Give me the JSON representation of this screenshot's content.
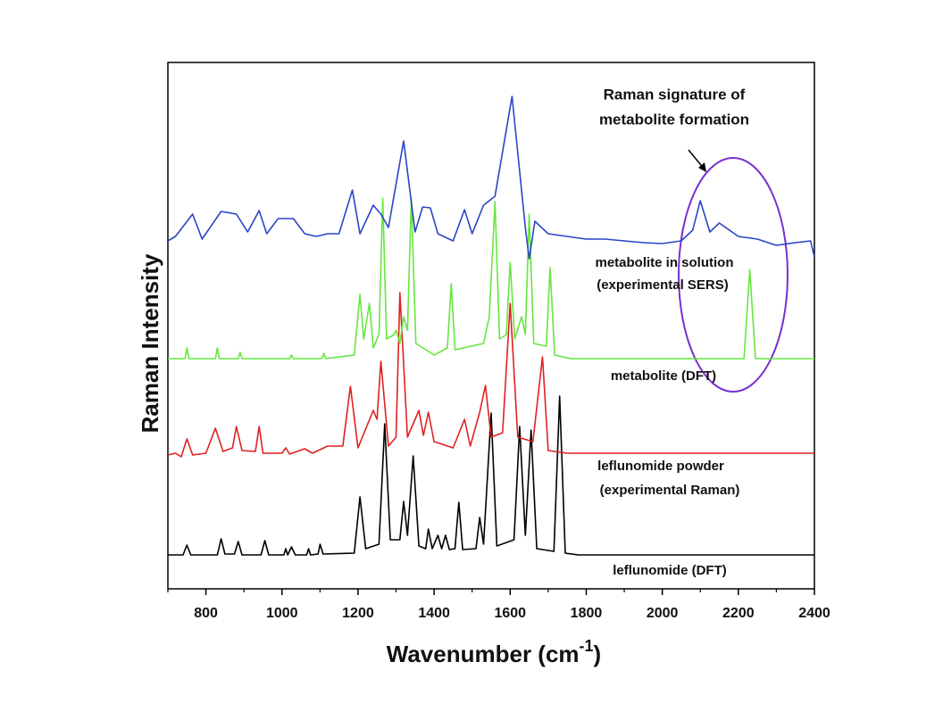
{
  "chart_data": {
    "type": "line",
    "xlabel": {
      "text": "Wavenumber (cm",
      "sup": "-1",
      "tail": ")"
    },
    "ylabel": "Raman Intensity",
    "xlim": [
      700,
      2400
    ],
    "xticks": [
      800,
      1000,
      1200,
      1400,
      1600,
      1800,
      2000,
      2200,
      2400
    ],
    "xticks_minor": [
      700,
      900,
      1100,
      1300,
      1500,
      1700,
      1900,
      2100,
      2300
    ],
    "ylim": [
      0,
      590
    ],
    "annotation": [
      "Raman signature of",
      "metabolite formation"
    ],
    "series": [
      {
        "label": [
          "leflunomide (DFT)"
        ],
        "color": "#000000",
        "x": [
          700,
          740,
          750,
          760,
          830,
          840,
          850,
          875,
          885,
          895,
          945,
          955,
          965,
          1005,
          1010,
          1015,
          1025,
          1035,
          1065,
          1070,
          1075,
          1095,
          1100,
          1108,
          1190,
          1205,
          1220,
          1255,
          1270,
          1285,
          1310,
          1320,
          1330,
          1345,
          1360,
          1378,
          1385,
          1395,
          1410,
          1420,
          1430,
          1440,
          1455,
          1465,
          1475,
          1510,
          1520,
          1530,
          1550,
          1565,
          1610,
          1625,
          1640,
          1655,
          1670,
          1715,
          1730,
          1745,
          1780,
          2400
        ],
        "values": [
          38,
          38,
          49,
          38,
          38,
          56,
          39,
          39,
          53,
          38,
          38,
          54,
          38,
          38,
          45,
          38,
          47,
          38,
          38,
          45,
          38,
          39,
          50,
          39,
          40,
          103,
          45,
          50,
          185,
          55,
          55,
          98,
          60,
          149,
          48,
          45,
          67,
          45,
          60,
          45,
          60,
          44,
          45,
          97,
          44,
          45,
          80,
          50,
          197,
          48,
          55,
          182,
          60,
          178,
          45,
          42,
          216,
          40,
          38,
          38
        ]
      },
      {
        "label": [
          "leflunomide powder",
          "(experimental Raman)"
        ],
        "color": "#e02020",
        "x": [
          700,
          720,
          735,
          750,
          765,
          800,
          825,
          845,
          870,
          880,
          895,
          930,
          940,
          950,
          1000,
          1010,
          1020,
          1060,
          1080,
          1120,
          1160,
          1180,
          1200,
          1240,
          1250,
          1260,
          1280,
          1300,
          1310,
          1330,
          1360,
          1372,
          1385,
          1400,
          1450,
          1480,
          1495,
          1520,
          1535,
          1550,
          1580,
          1600,
          1620,
          1660,
          1685,
          1700,
          1750,
          1800,
          2000,
          2200,
          2400
        ],
        "values": [
          150,
          152,
          148,
          168,
          150,
          152,
          180,
          154,
          158,
          182,
          155,
          154,
          182,
          152,
          152,
          158,
          151,
          157,
          152,
          160,
          160,
          227,
          158,
          200,
          190,
          255,
          160,
          170,
          332,
          170,
          200,
          172,
          198,
          165,
          158,
          190,
          160,
          198,
          228,
          170,
          175,
          320,
          170,
          165,
          260,
          155,
          152,
          152,
          152,
          152,
          152
        ]
      },
      {
        "label": [
          "metabolite (DFT)"
        ],
        "color": "#66e640",
        "x": [
          700,
          745,
          750,
          755,
          825,
          830,
          835,
          885,
          890,
          895,
          1020,
          1025,
          1030,
          1105,
          1110,
          1115,
          1190,
          1205,
          1215,
          1230,
          1240,
          1255,
          1265,
          1275,
          1295,
          1300,
          1310,
          1320,
          1330,
          1340,
          1352,
          1400,
          1435,
          1445,
          1455,
          1530,
          1545,
          1560,
          1572,
          1590,
          1600,
          1612,
          1630,
          1640,
          1650,
          1662,
          1695,
          1705,
          1717,
          1760,
          2215,
          2230,
          2245,
          2400
        ],
        "values": [
          258,
          258,
          270,
          258,
          258,
          270,
          258,
          258,
          265,
          258,
          258,
          262,
          258,
          258,
          264,
          258,
          262,
          330,
          280,
          320,
          270,
          285,
          438,
          280,
          285,
          290,
          275,
          305,
          290,
          438,
          275,
          262,
          270,
          342,
          268,
          275,
          305,
          434,
          280,
          285,
          366,
          280,
          305,
          285,
          420,
          275,
          272,
          360,
          262,
          258,
          258,
          358,
          258,
          258
        ]
      },
      {
        "label": [
          "metabolite in solution",
          "(experimental SERS)"
        ],
        "color": "#2a44c8",
        "x": [
          700,
          720,
          765,
          790,
          840,
          880,
          910,
          940,
          960,
          990,
          1030,
          1060,
          1090,
          1120,
          1150,
          1185,
          1205,
          1240,
          1260,
          1280,
          1320,
          1350,
          1370,
          1390,
          1410,
          1450,
          1480,
          1500,
          1530,
          1560,
          1605,
          1640,
          1650,
          1665,
          1700,
          1750,
          1800,
          1850,
          1900,
          1950,
          2000,
          2050,
          2080,
          2100,
          2125,
          2150,
          2200,
          2250,
          2300,
          2350,
          2390,
          2400
        ],
        "values": [
          390,
          395,
          420,
          392,
          423,
          420,
          400,
          424,
          398,
          415,
          415,
          398,
          395,
          398,
          398,
          447,
          398,
          430,
          420,
          405,
          502,
          400,
          428,
          427,
          398,
          390,
          425,
          398,
          430,
          440,
          552,
          405,
          370,
          412,
          398,
          395,
          392,
          392,
          390,
          388,
          387,
          390,
          402,
          435,
          400,
          410,
          395,
          392,
          385,
          388,
          390,
          372
        ]
      }
    ]
  }
}
